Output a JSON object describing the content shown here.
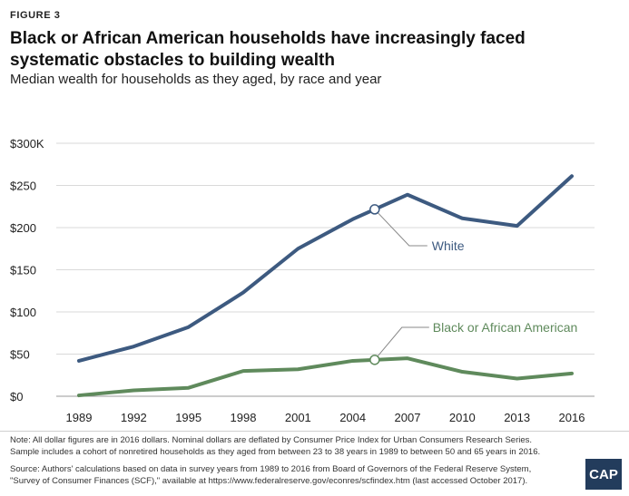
{
  "figure_label": "FIGURE 3",
  "title": "Black or African American households have increasingly faced systematic obstacles to building wealth",
  "subtitle": "Median wealth for households as they aged, by race and year",
  "note": "Note: All dollar figures are in 2016 dollars. Nominal dollars are deflated by Consumer Price Index for Urban Consumers Research Series. Sample includes a cohort of nonretired households as they aged from between 23 to 38 years in 1989 to between 50 and 65 years in 2016.",
  "source": "Source: Authors' calculations based on data in survey years from 1989 to 2016 from Board of Governors of the Federal Reserve System, \"Survey of Consumer Finances (SCF),\" available at https://www.federalreserve.gov/econres/scfindex.htm (last accessed October 2017).",
  "logo_text": "CAP",
  "colors": {
    "white_series": "#3d5a80",
    "black_series": "#5f8a5c",
    "axis": "#666666"
  },
  "chart_data": {
    "type": "line",
    "x": [
      1989,
      1992,
      1995,
      1998,
      2001,
      2004,
      2007,
      2010,
      2013,
      2016
    ],
    "x_tick_labels": [
      "1989",
      "1992",
      "1995",
      "1998",
      "2001",
      "2004",
      "2007",
      "2010",
      "2013",
      "2016"
    ],
    "y_ticks": [
      0,
      50,
      100,
      150,
      200,
      250,
      300
    ],
    "y_tick_labels": [
      "$0",
      "$50",
      "$100",
      "$150",
      "$200",
      "$250",
      "$300K"
    ],
    "ylim": [
      0,
      300
    ],
    "grid": "horizontal",
    "legend": "inline labels",
    "series": [
      {
        "name": "White",
        "values": [
          42,
          59,
          82,
          123,
          175,
          210,
          239,
          211,
          202,
          261
        ],
        "annotation_x": 2005.2
      },
      {
        "name": "Black or African American",
        "values": [
          1,
          7,
          10,
          30,
          32,
          42,
          45,
          29,
          21,
          27
        ],
        "annotation_x": 2005.2
      }
    ]
  }
}
